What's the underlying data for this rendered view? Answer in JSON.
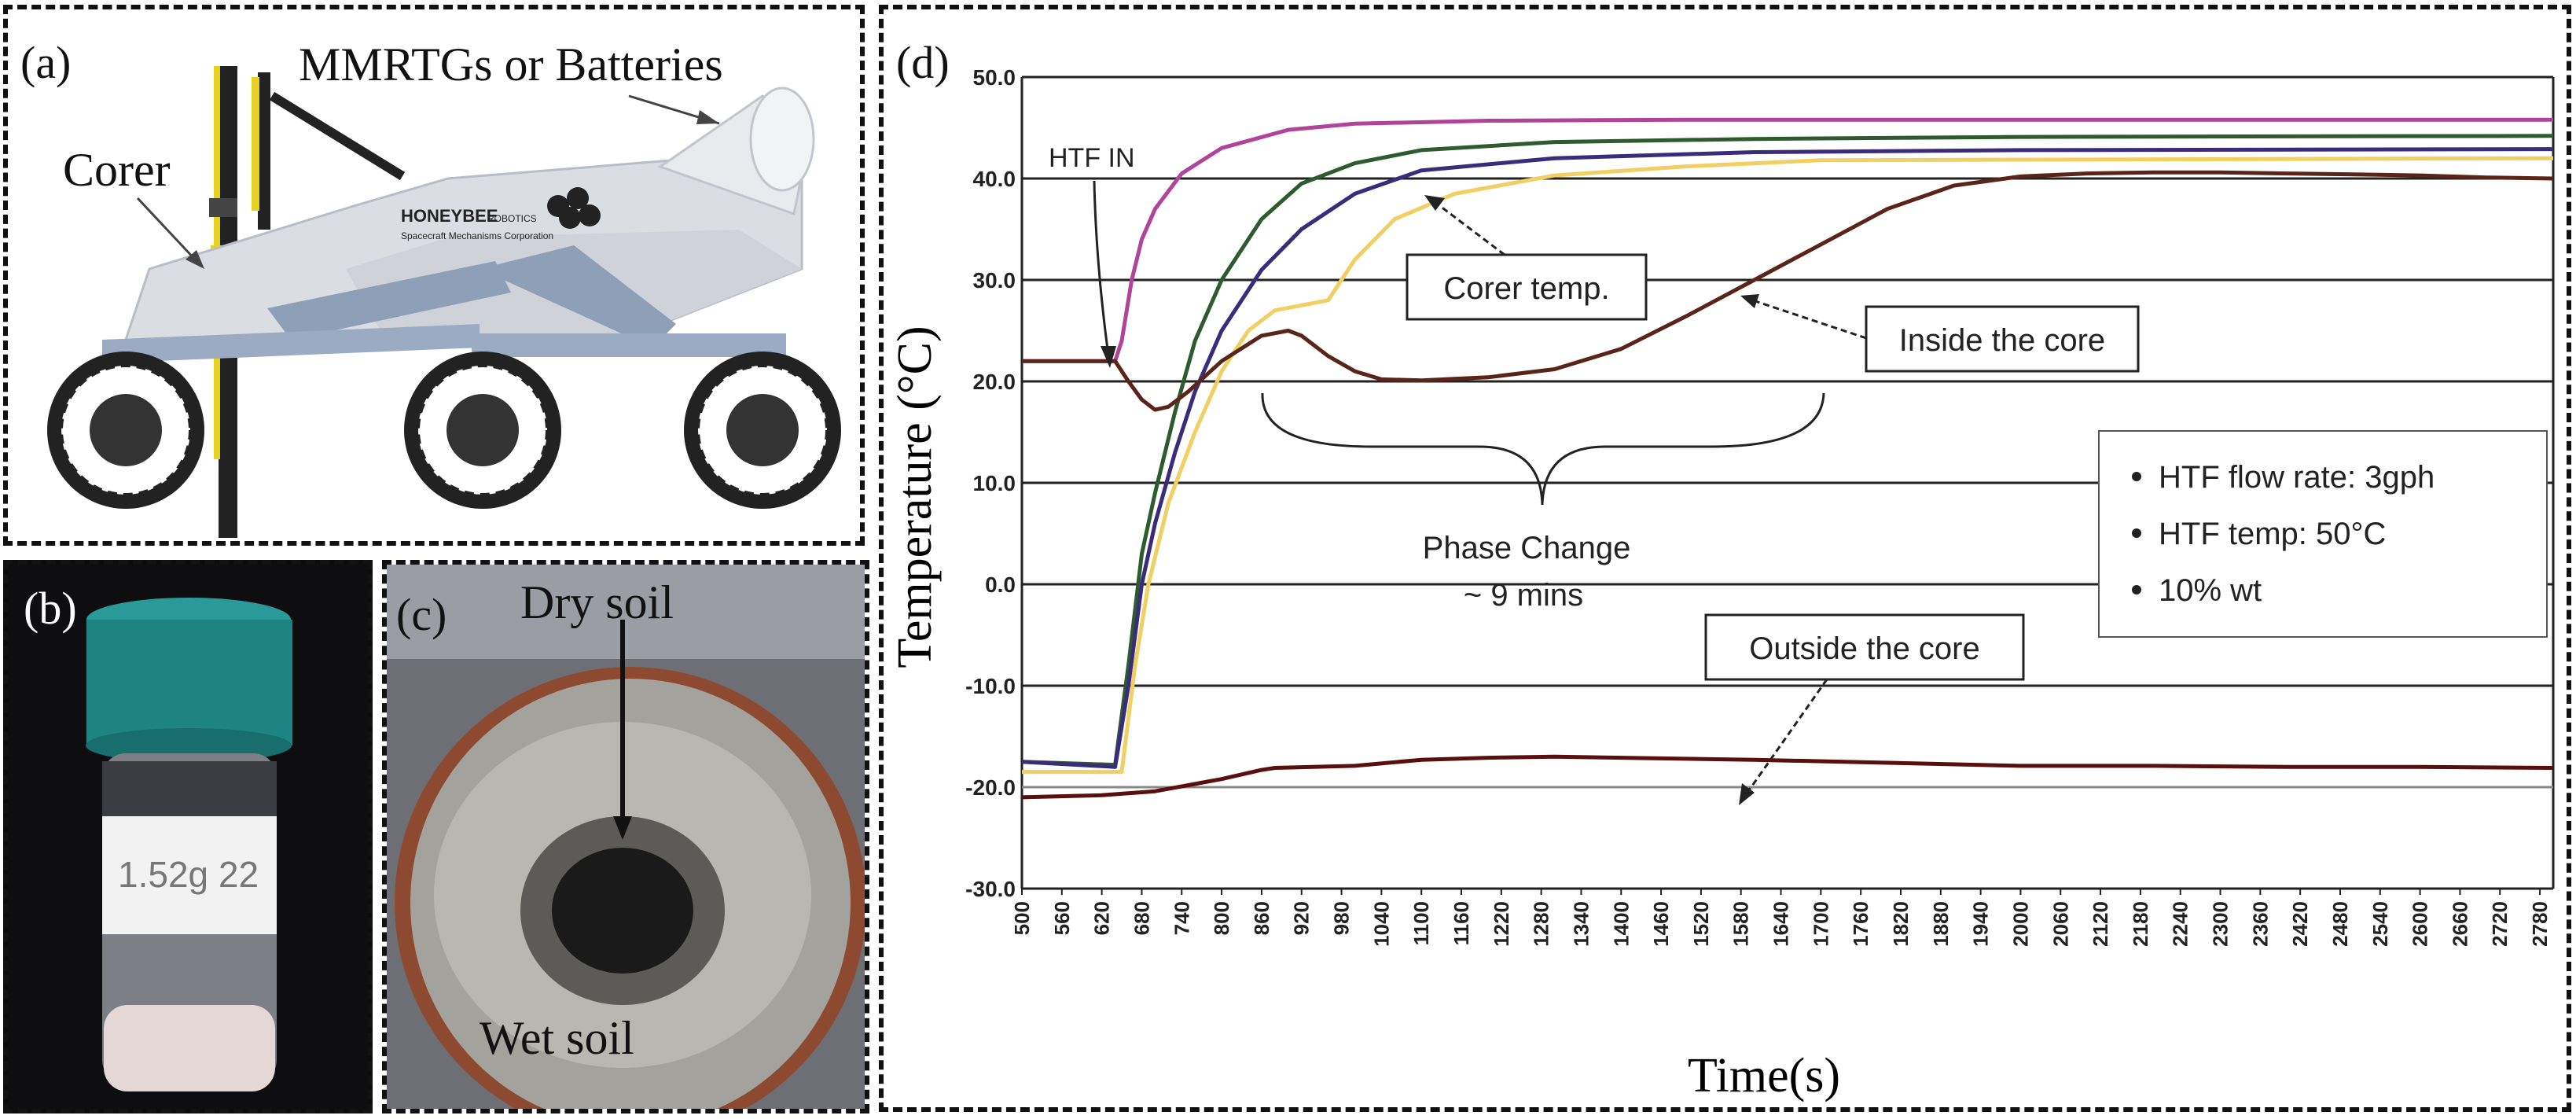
{
  "panels": {
    "a": {
      "label": "(a)",
      "annotations": {
        "mmrtg": "MMRTGs or Batteries",
        "corer": "Corer"
      },
      "logo": {
        "brand": "HONEYBEE",
        "sub": "ROBOTICS",
        "line2": "Spacecraft Mechanisms Corporation"
      }
    },
    "b": {
      "label": "(b)",
      "vial_text": "1.52g 22"
    },
    "c": {
      "label": "(c)",
      "annotations": {
        "dry": "Dry soil",
        "wet": "Wet soil"
      }
    },
    "d": {
      "label": "(d)"
    }
  },
  "chart_data": {
    "type": "line",
    "xlabel": "Time(s)",
    "ylabel": "Temperature (°C)",
    "xlim": [
      500,
      2800
    ],
    "ylim": [
      -30,
      50
    ],
    "x_ticks": [
      500,
      560,
      620,
      680,
      740,
      800,
      860,
      920,
      980,
      1040,
      1100,
      1160,
      1220,
      1280,
      1340,
      1400,
      1460,
      1520,
      1580,
      1640,
      1700,
      1760,
      1820,
      1880,
      1940,
      2000,
      2060,
      2120,
      2180,
      2240,
      2300,
      2360,
      2420,
      2480,
      2540,
      2600,
      2660,
      2720,
      2780
    ],
    "y_ticks": [
      50,
      40,
      30,
      20,
      10,
      0,
      -10,
      -20,
      -30
    ],
    "y_tick_labels": [
      "50.0",
      "40.0",
      "30.0",
      "20.0",
      "10.0",
      "0.0",
      "-10.0",
      "-20.0",
      "-30.0"
    ],
    "grid": "horizontal",
    "series": [
      {
        "color": "#b0439a",
        "x": [
          500,
          640,
          650,
          665,
          680,
          700,
          740,
          800,
          900,
          1000,
          1200,
          1500,
          2000,
          2800
        ],
        "y": [
          22,
          22,
          24,
          30,
          34,
          37,
          40.5,
          43,
          44.8,
          45.4,
          45.7,
          45.8,
          45.8,
          45.8
        ]
      },
      {
        "color": "#2e5b2e",
        "x": [
          500,
          640,
          660,
          680,
          700,
          730,
          760,
          800,
          860,
          920,
          1000,
          1100,
          1300,
          1600,
          2000,
          2800
        ],
        "y": [
          -17.5,
          -17.8,
          -8,
          3,
          9,
          17,
          24,
          30,
          36,
          39.5,
          41.5,
          42.8,
          43.6,
          43.9,
          44.1,
          44.2
        ]
      },
      {
        "color": "#3a2c7a",
        "x": [
          500,
          640,
          660,
          680,
          700,
          730,
          760,
          800,
          860,
          920,
          1000,
          1100,
          1300,
          1600,
          2000,
          2800
        ],
        "y": [
          -17.5,
          -18,
          -10,
          0,
          6,
          13,
          19,
          25,
          31,
          35,
          38.5,
          40.8,
          42,
          42.6,
          42.8,
          42.9
        ]
      },
      {
        "color": "#f2cf63",
        "x": [
          500,
          650,
          670,
          690,
          720,
          760,
          800,
          840,
          880,
          920,
          960,
          1000,
          1060,
          1150,
          1300,
          1500,
          1700,
          2800
        ],
        "y": [
          -18.5,
          -18.5,
          -8,
          0,
          8,
          15,
          21,
          25,
          27,
          27.5,
          28,
          32,
          36,
          38.5,
          40.3,
          41.2,
          41.8,
          42
        ]
      },
      {
        "color": "#5a2418",
        "x": [
          500,
          640,
          660,
          680,
          700,
          720,
          750,
          800,
          860,
          900,
          920,
          960,
          1000,
          1040,
          1100,
          1200,
          1300,
          1400,
          1500,
          1600,
          1700,
          1800,
          1900,
          2000,
          2100,
          2200,
          2300,
          2400,
          2500,
          2600,
          2700,
          2800
        ],
        "y": [
          22,
          22,
          20,
          18.2,
          17.2,
          17.5,
          19,
          22,
          24.5,
          25,
          24.5,
          22.5,
          21,
          20.2,
          20.1,
          20.4,
          21.2,
          23.2,
          26.5,
          30,
          33.5,
          37,
          39.3,
          40.2,
          40.5,
          40.6,
          40.6,
          40.5,
          40.4,
          40.3,
          40.1,
          40
        ]
      },
      {
        "color": "#5a0f0f",
        "x": [
          500,
          620,
          700,
          800,
          860,
          880,
          1000,
          1100,
          1200,
          1300,
          1400,
          1600,
          1800,
          2000,
          2200,
          2400,
          2600,
          2800
        ],
        "y": [
          -21,
          -20.8,
          -20.4,
          -19.2,
          -18.3,
          -18.1,
          -17.9,
          -17.3,
          -17.1,
          -17,
          -17.1,
          -17.3,
          -17.6,
          -17.9,
          -17.9,
          -18,
          -18,
          -18.1
        ]
      }
    ],
    "annotations": [
      {
        "text": "HTF IN"
      },
      {
        "text": "Corer temp."
      },
      {
        "text": "Inside the core"
      },
      {
        "text": "Phase Change"
      },
      {
        "text": "~ 9 mins"
      },
      {
        "text": "Outside the core"
      }
    ],
    "legend_placement": "right",
    "legend": [
      "HTF flow rate: 3gph",
      "HTF temp: 50°C",
      "10% wt"
    ]
  }
}
